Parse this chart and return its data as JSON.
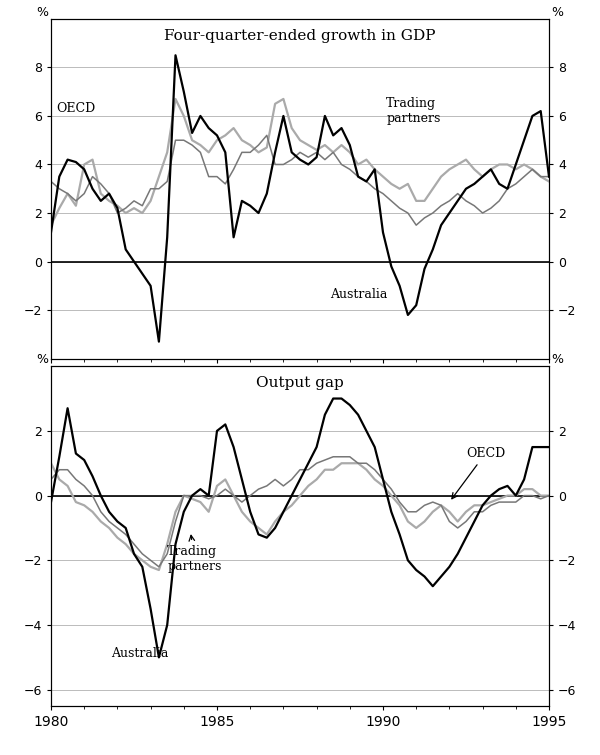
{
  "top_panel": {
    "title": "Four-quarter-ended growth in GDP",
    "ylim": [
      -4,
      10
    ],
    "yticks": [
      -2,
      0,
      2,
      4,
      6,
      8
    ],
    "australia": [
      [
        1980.0,
        1.2
      ],
      [
        1980.25,
        3.5
      ],
      [
        1980.5,
        4.2
      ],
      [
        1980.75,
        4.1
      ],
      [
        1981.0,
        3.8
      ],
      [
        1981.25,
        3.0
      ],
      [
        1981.5,
        2.5
      ],
      [
        1981.75,
        2.8
      ],
      [
        1982.0,
        2.2
      ],
      [
        1982.25,
        0.5
      ],
      [
        1982.5,
        0.0
      ],
      [
        1982.75,
        -0.5
      ],
      [
        1983.0,
        -1.0
      ],
      [
        1983.25,
        -3.3
      ],
      [
        1983.5,
        1.0
      ],
      [
        1983.75,
        8.5
      ],
      [
        1984.0,
        7.0
      ],
      [
        1984.25,
        5.3
      ],
      [
        1984.5,
        6.0
      ],
      [
        1984.75,
        5.5
      ],
      [
        1985.0,
        5.2
      ],
      [
        1985.25,
        4.5
      ],
      [
        1985.5,
        1.0
      ],
      [
        1985.75,
        2.5
      ],
      [
        1986.0,
        2.3
      ],
      [
        1986.25,
        2.0
      ],
      [
        1986.5,
        2.8
      ],
      [
        1986.75,
        4.5
      ],
      [
        1987.0,
        6.0
      ],
      [
        1987.25,
        4.5
      ],
      [
        1987.5,
        4.2
      ],
      [
        1987.75,
        4.0
      ],
      [
        1988.0,
        4.3
      ],
      [
        1988.25,
        6.0
      ],
      [
        1988.5,
        5.2
      ],
      [
        1988.75,
        5.5
      ],
      [
        1989.0,
        4.8
      ],
      [
        1989.25,
        3.5
      ],
      [
        1989.5,
        3.3
      ],
      [
        1989.75,
        3.8
      ],
      [
        1990.0,
        1.2
      ],
      [
        1990.25,
        -0.2
      ],
      [
        1990.5,
        -1.0
      ],
      [
        1990.75,
        -2.2
      ],
      [
        1991.0,
        -1.8
      ],
      [
        1991.25,
        -0.3
      ],
      [
        1991.5,
        0.5
      ],
      [
        1991.75,
        1.5
      ],
      [
        1992.0,
        2.0
      ],
      [
        1992.25,
        2.5
      ],
      [
        1992.5,
        3.0
      ],
      [
        1992.75,
        3.2
      ],
      [
        1993.0,
        3.5
      ],
      [
        1993.25,
        3.8
      ],
      [
        1993.5,
        3.2
      ],
      [
        1993.75,
        3.0
      ],
      [
        1994.0,
        4.0
      ],
      [
        1994.25,
        5.0
      ],
      [
        1994.5,
        6.0
      ],
      [
        1994.75,
        6.2
      ],
      [
        1995.0,
        3.5
      ]
    ],
    "oecd": [
      [
        1980.0,
        3.3
      ],
      [
        1980.25,
        3.0
      ],
      [
        1980.5,
        2.8
      ],
      [
        1980.75,
        2.5
      ],
      [
        1981.0,
        2.8
      ],
      [
        1981.25,
        3.5
      ],
      [
        1981.5,
        3.2
      ],
      [
        1981.75,
        2.8
      ],
      [
        1982.0,
        2.0
      ],
      [
        1982.25,
        2.2
      ],
      [
        1982.5,
        2.5
      ],
      [
        1982.75,
        2.3
      ],
      [
        1983.0,
        3.0
      ],
      [
        1983.25,
        3.0
      ],
      [
        1983.5,
        3.3
      ],
      [
        1983.75,
        5.0
      ],
      [
        1984.0,
        5.0
      ],
      [
        1984.25,
        4.8
      ],
      [
        1984.5,
        4.5
      ],
      [
        1984.75,
        3.5
      ],
      [
        1985.0,
        3.5
      ],
      [
        1985.25,
        3.2
      ],
      [
        1985.5,
        3.8
      ],
      [
        1985.75,
        4.5
      ],
      [
        1986.0,
        4.5
      ],
      [
        1986.25,
        4.8
      ],
      [
        1986.5,
        5.2
      ],
      [
        1986.75,
        4.0
      ],
      [
        1987.0,
        4.0
      ],
      [
        1987.25,
        4.2
      ],
      [
        1987.5,
        4.5
      ],
      [
        1987.75,
        4.3
      ],
      [
        1988.0,
        4.5
      ],
      [
        1988.25,
        4.2
      ],
      [
        1988.5,
        4.5
      ],
      [
        1988.75,
        4.0
      ],
      [
        1989.0,
        3.8
      ],
      [
        1989.25,
        3.5
      ],
      [
        1989.5,
        3.3
      ],
      [
        1989.75,
        3.0
      ],
      [
        1990.0,
        2.8
      ],
      [
        1990.25,
        2.5
      ],
      [
        1990.5,
        2.2
      ],
      [
        1990.75,
        2.0
      ],
      [
        1991.0,
        1.5
      ],
      [
        1991.25,
        1.8
      ],
      [
        1991.5,
        2.0
      ],
      [
        1991.75,
        2.3
      ],
      [
        1992.0,
        2.5
      ],
      [
        1992.25,
        2.8
      ],
      [
        1992.5,
        2.5
      ],
      [
        1992.75,
        2.3
      ],
      [
        1993.0,
        2.0
      ],
      [
        1993.25,
        2.2
      ],
      [
        1993.5,
        2.5
      ],
      [
        1993.75,
        3.0
      ],
      [
        1994.0,
        3.2
      ],
      [
        1994.25,
        3.5
      ],
      [
        1994.5,
        3.8
      ],
      [
        1994.75,
        3.5
      ],
      [
        1995.0,
        3.5
      ]
    ],
    "trading_partners": [
      [
        1980.0,
        1.5
      ],
      [
        1980.25,
        2.2
      ],
      [
        1980.5,
        2.8
      ],
      [
        1980.75,
        2.3
      ],
      [
        1981.0,
        4.0
      ],
      [
        1981.25,
        4.2
      ],
      [
        1981.5,
        2.8
      ],
      [
        1981.75,
        2.5
      ],
      [
        1982.0,
        2.3
      ],
      [
        1982.25,
        2.0
      ],
      [
        1982.5,
        2.2
      ],
      [
        1982.75,
        2.0
      ],
      [
        1983.0,
        2.5
      ],
      [
        1983.25,
        3.5
      ],
      [
        1983.5,
        4.5
      ],
      [
        1983.75,
        6.7
      ],
      [
        1984.0,
        6.0
      ],
      [
        1984.25,
        5.0
      ],
      [
        1984.5,
        4.8
      ],
      [
        1984.75,
        4.5
      ],
      [
        1985.0,
        5.0
      ],
      [
        1985.25,
        5.2
      ],
      [
        1985.5,
        5.5
      ],
      [
        1985.75,
        5.0
      ],
      [
        1986.0,
        4.8
      ],
      [
        1986.25,
        4.5
      ],
      [
        1986.5,
        4.7
      ],
      [
        1986.75,
        6.5
      ],
      [
        1987.0,
        6.7
      ],
      [
        1987.25,
        5.5
      ],
      [
        1987.5,
        5.0
      ],
      [
        1987.75,
        4.8
      ],
      [
        1988.0,
        4.6
      ],
      [
        1988.25,
        4.8
      ],
      [
        1988.5,
        4.5
      ],
      [
        1988.75,
        4.8
      ],
      [
        1989.0,
        4.5
      ],
      [
        1989.25,
        4.0
      ],
      [
        1989.5,
        4.2
      ],
      [
        1989.75,
        3.8
      ],
      [
        1990.0,
        3.5
      ],
      [
        1990.25,
        3.2
      ],
      [
        1990.5,
        3.0
      ],
      [
        1990.75,
        3.2
      ],
      [
        1991.0,
        2.5
      ],
      [
        1991.25,
        2.5
      ],
      [
        1991.5,
        3.0
      ],
      [
        1991.75,
        3.5
      ],
      [
        1992.0,
        3.8
      ],
      [
        1992.25,
        4.0
      ],
      [
        1992.5,
        4.2
      ],
      [
        1992.75,
        3.8
      ],
      [
        1993.0,
        3.5
      ],
      [
        1993.25,
        3.8
      ],
      [
        1993.5,
        4.0
      ],
      [
        1993.75,
        4.0
      ],
      [
        1994.0,
        3.8
      ],
      [
        1994.25,
        4.0
      ],
      [
        1994.5,
        3.8
      ],
      [
        1994.75,
        3.5
      ],
      [
        1995.0,
        3.3
      ]
    ]
  },
  "bottom_panel": {
    "title": "Output gap",
    "ylim": [
      -6.5,
      4
    ],
    "yticks": [
      -6,
      -4,
      -2,
      0,
      2
    ],
    "australia": [
      [
        1980.0,
        -0.2
      ],
      [
        1980.25,
        1.2
      ],
      [
        1980.5,
        2.7
      ],
      [
        1980.75,
        1.3
      ],
      [
        1981.0,
        1.1
      ],
      [
        1981.25,
        0.6
      ],
      [
        1981.5,
        0.0
      ],
      [
        1981.75,
        -0.5
      ],
      [
        1982.0,
        -0.8
      ],
      [
        1982.25,
        -1.0
      ],
      [
        1982.5,
        -1.8
      ],
      [
        1982.75,
        -2.2
      ],
      [
        1983.0,
        -3.5
      ],
      [
        1983.25,
        -5.0
      ],
      [
        1983.5,
        -4.0
      ],
      [
        1983.75,
        -1.5
      ],
      [
        1984.0,
        -0.5
      ],
      [
        1984.25,
        0.0
      ],
      [
        1984.5,
        0.2
      ],
      [
        1984.75,
        0.0
      ],
      [
        1985.0,
        2.0
      ],
      [
        1985.25,
        2.2
      ],
      [
        1985.5,
        1.5
      ],
      [
        1985.75,
        0.5
      ],
      [
        1986.0,
        -0.5
      ],
      [
        1986.25,
        -1.2
      ],
      [
        1986.5,
        -1.3
      ],
      [
        1986.75,
        -1.0
      ],
      [
        1987.0,
        -0.5
      ],
      [
        1987.25,
        0.0
      ],
      [
        1987.5,
        0.5
      ],
      [
        1987.75,
        1.0
      ],
      [
        1988.0,
        1.5
      ],
      [
        1988.25,
        2.5
      ],
      [
        1988.5,
        3.0
      ],
      [
        1988.75,
        3.0
      ],
      [
        1989.0,
        2.8
      ],
      [
        1989.25,
        2.5
      ],
      [
        1989.5,
        2.0
      ],
      [
        1989.75,
        1.5
      ],
      [
        1990.0,
        0.5
      ],
      [
        1990.25,
        -0.5
      ],
      [
        1990.5,
        -1.2
      ],
      [
        1990.75,
        -2.0
      ],
      [
        1991.0,
        -2.3
      ],
      [
        1991.25,
        -2.5
      ],
      [
        1991.5,
        -2.8
      ],
      [
        1991.75,
        -2.5
      ],
      [
        1992.0,
        -2.2
      ],
      [
        1992.25,
        -1.8
      ],
      [
        1992.5,
        -1.3
      ],
      [
        1992.75,
        -0.8
      ],
      [
        1993.0,
        -0.3
      ],
      [
        1993.25,
        0.0
      ],
      [
        1993.5,
        0.2
      ],
      [
        1993.75,
        0.3
      ],
      [
        1994.0,
        0.0
      ],
      [
        1994.25,
        0.5
      ],
      [
        1994.5,
        1.5
      ],
      [
        1994.75,
        1.5
      ],
      [
        1995.0,
        1.5
      ]
    ],
    "oecd": [
      [
        1980.0,
        0.5
      ],
      [
        1980.25,
        0.8
      ],
      [
        1980.5,
        0.8
      ],
      [
        1980.75,
        0.5
      ],
      [
        1981.0,
        0.3
      ],
      [
        1981.25,
        0.0
      ],
      [
        1981.5,
        -0.5
      ],
      [
        1981.75,
        -0.8
      ],
      [
        1982.0,
        -1.0
      ],
      [
        1982.25,
        -1.2
      ],
      [
        1982.5,
        -1.5
      ],
      [
        1982.75,
        -1.8
      ],
      [
        1983.0,
        -2.0
      ],
      [
        1983.25,
        -2.2
      ],
      [
        1983.5,
        -1.8
      ],
      [
        1983.75,
        -0.8
      ],
      [
        1984.0,
        0.0
      ],
      [
        1984.25,
        0.0
      ],
      [
        1984.5,
        0.0
      ],
      [
        1984.75,
        -0.1
      ],
      [
        1985.0,
        0.0
      ],
      [
        1985.25,
        0.2
      ],
      [
        1985.5,
        0.0
      ],
      [
        1985.75,
        -0.2
      ],
      [
        1986.0,
        0.0
      ],
      [
        1986.25,
        0.2
      ],
      [
        1986.5,
        0.3
      ],
      [
        1986.75,
        0.5
      ],
      [
        1987.0,
        0.3
      ],
      [
        1987.25,
        0.5
      ],
      [
        1987.5,
        0.8
      ],
      [
        1987.75,
        0.8
      ],
      [
        1988.0,
        1.0
      ],
      [
        1988.25,
        1.1
      ],
      [
        1988.5,
        1.2
      ],
      [
        1988.75,
        1.2
      ],
      [
        1989.0,
        1.2
      ],
      [
        1989.25,
        1.0
      ],
      [
        1989.5,
        1.0
      ],
      [
        1989.75,
        0.8
      ],
      [
        1990.0,
        0.5
      ],
      [
        1990.25,
        0.2
      ],
      [
        1990.5,
        -0.2
      ],
      [
        1990.75,
        -0.5
      ],
      [
        1991.0,
        -0.5
      ],
      [
        1991.25,
        -0.3
      ],
      [
        1991.5,
        -0.2
      ],
      [
        1991.75,
        -0.3
      ],
      [
        1992.0,
        -0.8
      ],
      [
        1992.25,
        -1.0
      ],
      [
        1992.5,
        -0.8
      ],
      [
        1992.75,
        -0.5
      ],
      [
        1993.0,
        -0.5
      ],
      [
        1993.25,
        -0.3
      ],
      [
        1993.5,
        -0.2
      ],
      [
        1993.75,
        -0.2
      ],
      [
        1994.0,
        -0.2
      ],
      [
        1994.25,
        0.0
      ],
      [
        1994.5,
        0.0
      ],
      [
        1994.75,
        -0.1
      ],
      [
        1995.0,
        0.0
      ]
    ],
    "trading_partners": [
      [
        1980.0,
        1.0
      ],
      [
        1980.25,
        0.5
      ],
      [
        1980.5,
        0.3
      ],
      [
        1980.75,
        -0.2
      ],
      [
        1981.0,
        -0.3
      ],
      [
        1981.25,
        -0.5
      ],
      [
        1981.5,
        -0.8
      ],
      [
        1981.75,
        -1.0
      ],
      [
        1982.0,
        -1.3
      ],
      [
        1982.25,
        -1.5
      ],
      [
        1982.5,
        -1.8
      ],
      [
        1982.75,
        -2.0
      ],
      [
        1983.0,
        -2.2
      ],
      [
        1983.25,
        -2.3
      ],
      [
        1983.5,
        -1.5
      ],
      [
        1983.75,
        -0.5
      ],
      [
        1984.0,
        0.0
      ],
      [
        1984.25,
        -0.1
      ],
      [
        1984.5,
        -0.2
      ],
      [
        1984.75,
        -0.5
      ],
      [
        1985.0,
        0.3
      ],
      [
        1985.25,
        0.5
      ],
      [
        1985.5,
        0.0
      ],
      [
        1985.75,
        -0.5
      ],
      [
        1986.0,
        -0.8
      ],
      [
        1986.25,
        -1.0
      ],
      [
        1986.5,
        -1.2
      ],
      [
        1986.75,
        -0.8
      ],
      [
        1987.0,
        -0.5
      ],
      [
        1987.25,
        -0.3
      ],
      [
        1987.5,
        0.0
      ],
      [
        1987.75,
        0.3
      ],
      [
        1988.0,
        0.5
      ],
      [
        1988.25,
        0.8
      ],
      [
        1988.5,
        0.8
      ],
      [
        1988.75,
        1.0
      ],
      [
        1989.0,
        1.0
      ],
      [
        1989.25,
        1.0
      ],
      [
        1989.5,
        0.8
      ],
      [
        1989.75,
        0.5
      ],
      [
        1990.0,
        0.3
      ],
      [
        1990.25,
        0.0
      ],
      [
        1990.5,
        -0.3
      ],
      [
        1990.75,
        -0.8
      ],
      [
        1991.0,
        -1.0
      ],
      [
        1991.25,
        -0.8
      ],
      [
        1991.5,
        -0.5
      ],
      [
        1991.75,
        -0.3
      ],
      [
        1992.0,
        -0.5
      ],
      [
        1992.25,
        -0.8
      ],
      [
        1992.5,
        -0.5
      ],
      [
        1992.75,
        -0.3
      ],
      [
        1993.0,
        -0.3
      ],
      [
        1993.25,
        -0.2
      ],
      [
        1993.5,
        -0.1
      ],
      [
        1993.75,
        0.0
      ],
      [
        1994.0,
        0.0
      ],
      [
        1994.25,
        0.2
      ],
      [
        1994.5,
        0.2
      ],
      [
        1994.75,
        0.0
      ],
      [
        1995.0,
        0.0
      ]
    ]
  },
  "xlim": [
    1980,
    1995
  ],
  "xticks": [
    1980,
    1985,
    1990,
    1995
  ],
  "xticklabels": [
    "1980",
    "1985",
    "1990",
    "1995"
  ],
  "australia_color": "#000000",
  "oecd_color": "#777777",
  "trading_color": "#aaaaaa",
  "linewidth_aus": 1.6,
  "linewidth_oecd": 1.1,
  "linewidth_tp": 1.6,
  "background_color": "#ffffff",
  "grid_color": "#bbbbbb"
}
